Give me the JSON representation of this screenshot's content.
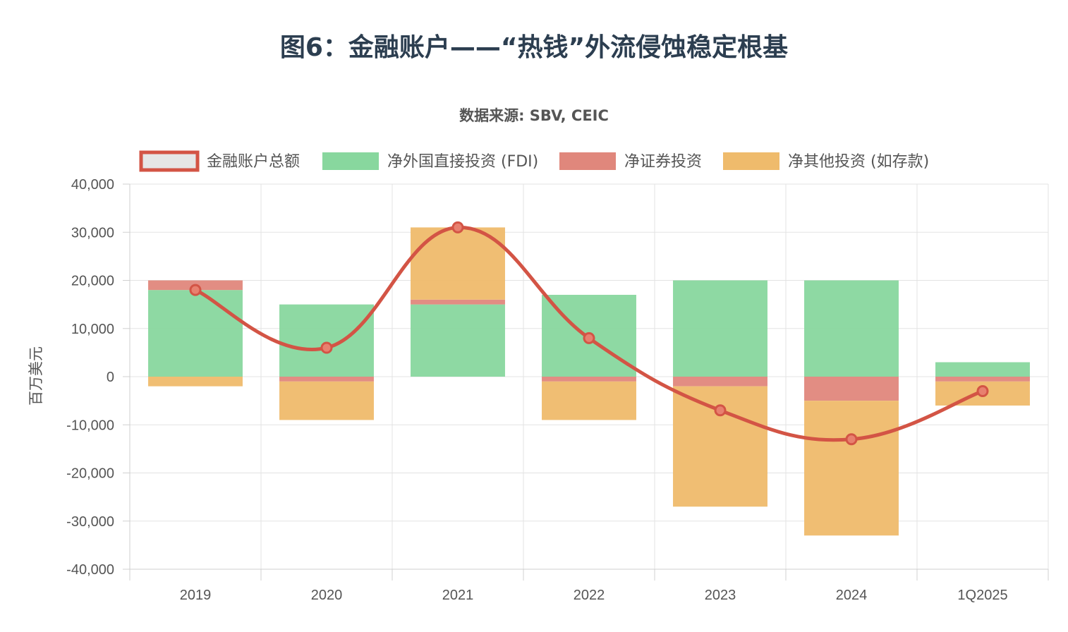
{
  "title": "图6：金融账户——“热钱”外流侵蚀稳定根基",
  "subtitle": "数据来源: SBV, CEIC",
  "chart_data": {
    "type": "bar",
    "stacked": true,
    "categories": [
      "2019",
      "2020",
      "2021",
      "2022",
      "2023",
      "2024",
      "1Q2025"
    ],
    "ylabel": "百万美元",
    "ylim": [
      -40000,
      40000
    ],
    "yticks": [
      40000,
      30000,
      20000,
      10000,
      0,
      -10000,
      -20000,
      -30000,
      -40000
    ],
    "ytick_labels": [
      "40,000",
      "30,000",
      "20,000",
      "10,000",
      "0",
      "-10,000",
      "-20,000",
      "-30,000",
      "-40,000"
    ],
    "grid": true,
    "legend_position": "top",
    "series": [
      {
        "name": "金融账户总额",
        "type": "line",
        "color": "#d35445",
        "values": [
          18000,
          6000,
          31000,
          8000,
          -7000,
          -13000,
          -3000
        ]
      },
      {
        "name": "净外国直接投资 (FDI)",
        "type": "bar",
        "color": "#88d79e",
        "values": [
          18000,
          15000,
          15000,
          17000,
          20000,
          20000,
          3000
        ]
      },
      {
        "name": "净证券投资",
        "type": "bar",
        "color": "#e0877c",
        "values": [
          2000,
          -1000,
          1000,
          -1000,
          -2000,
          -5000,
          -1000
        ]
      },
      {
        "name": "净其他投资 (如存款)",
        "type": "bar",
        "color": "#efbb6c",
        "values": [
          -2000,
          -8000,
          15000,
          -8000,
          -25000,
          -28000,
          -5000
        ]
      }
    ]
  }
}
